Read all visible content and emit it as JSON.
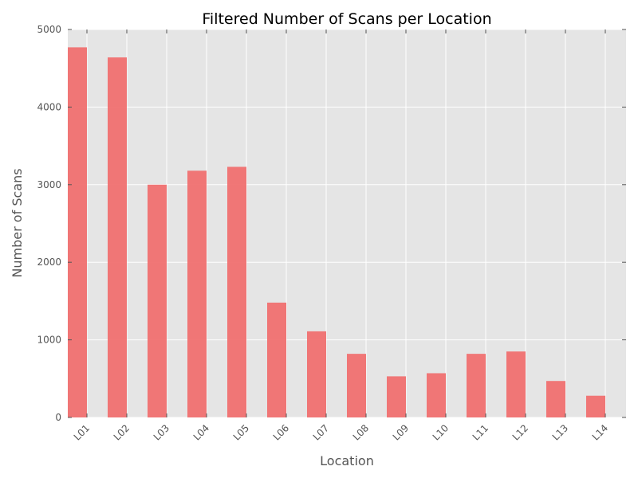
{
  "chart_data": {
    "type": "bar",
    "title": "Filtered Number of Scans per Location",
    "xlabel": "Location",
    "ylabel": "Number of Scans",
    "categories": [
      "L01",
      "L02",
      "L03",
      "L04",
      "L05",
      "L06",
      "L07",
      "L08",
      "L09",
      "L10",
      "L11",
      "L12",
      "L13",
      "L14"
    ],
    "values": [
      4770,
      4640,
      3000,
      3180,
      3230,
      1480,
      1110,
      820,
      530,
      570,
      820,
      850,
      470,
      280
    ],
    "ylim": [
      0,
      5000
    ],
    "yticks": [
      0,
      1000,
      2000,
      3000,
      4000,
      5000
    ],
    "grid": true,
    "legend": "none",
    "bar_color": "#f07070",
    "background_color": "#e5e5e5",
    "x_tick_rotation": "45 degrees"
  }
}
